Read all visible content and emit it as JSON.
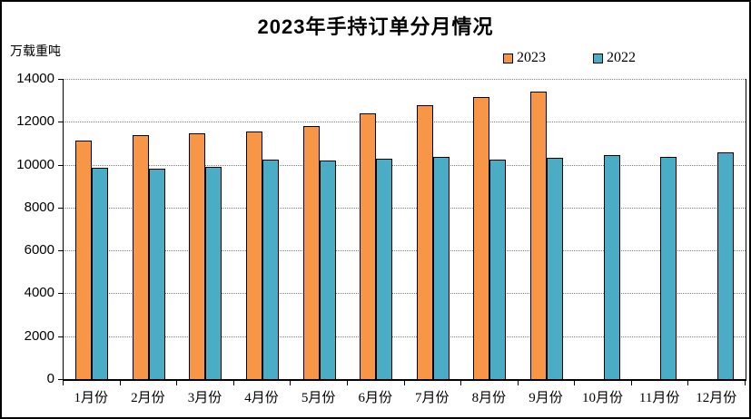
{
  "chart_data": {
    "type": "bar",
    "title": "2023年手持订单分月情况",
    "ylabel": "万载重吨",
    "xlabel": "",
    "categories": [
      "1月份",
      "2月份",
      "3月份",
      "4月份",
      "5月份",
      "6月份",
      "7月份",
      "8月份",
      "9月份",
      "10月份",
      "11月份",
      "12月份"
    ],
    "series": [
      {
        "name": "2023",
        "color": "#F79646",
        "values": [
          11112,
          11361,
          11452,
          11532,
          11799,
          12377,
          12790,
          13155,
          13393,
          null,
          null,
          null
        ]
      },
      {
        "name": "2022",
        "color": "#4BACC6",
        "values": [
          9858,
          9798,
          9894,
          10247,
          10214,
          10274,
          10366,
          10216,
          10305,
          10442,
          10349,
          10557
        ]
      }
    ],
    "ylim": [
      0,
      14000
    ],
    "ytick_step": 2000,
    "grid": "horizontal-dotted",
    "legend_position": "top-right",
    "bar_border_color": "#000000",
    "gridline_color": "#808080"
  }
}
